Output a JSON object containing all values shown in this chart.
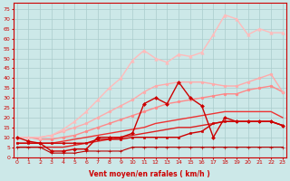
{
  "xlabel": "Vent moyen/en rafales ( km/h )",
  "background_color": "#cce8e8",
  "grid_color": "#aacccc",
  "x": [
    0,
    1,
    2,
    3,
    4,
    5,
    6,
    7,
    8,
    9,
    10,
    11,
    12,
    13,
    14,
    15,
    16,
    17,
    18,
    19,
    20,
    21,
    22,
    23
  ],
  "lines": [
    {
      "y": [
        5,
        5,
        5,
        2,
        2,
        2,
        3,
        3,
        3,
        3,
        5,
        5,
        5,
        5,
        5,
        5,
        5,
        5,
        5,
        5,
        5,
        5,
        5,
        5
      ],
      "color": "#bb0000",
      "lw": 0.8,
      "marker": "+",
      "ms": 2.5,
      "zorder": 5
    },
    {
      "y": [
        7,
        7,
        7,
        7,
        7,
        7,
        7,
        9,
        9,
        9,
        10,
        10,
        10,
        10,
        10,
        12,
        13,
        17,
        18,
        18,
        18,
        18,
        18,
        16
      ],
      "color": "#cc0000",
      "lw": 1.0,
      "marker": "s",
      "ms": 2.0,
      "zorder": 5
    },
    {
      "y": [
        10,
        8,
        7,
        3,
        3,
        4,
        4,
        10,
        10,
        10,
        12,
        27,
        30,
        27,
        38,
        30,
        26,
        10,
        20,
        18,
        18,
        18,
        18,
        16
      ],
      "color": "#cc0000",
      "lw": 1.0,
      "marker": "D",
      "ms": 2.0,
      "zorder": 6
    },
    {
      "y": [
        5,
        5,
        5,
        5,
        5,
        6,
        7,
        8,
        9,
        10,
        11,
        12,
        13,
        14,
        15,
        15,
        16,
        17,
        18,
        18,
        18,
        18,
        18,
        16
      ],
      "color": "#dd2020",
      "lw": 1.0,
      "marker": null,
      "ms": 0,
      "zorder": 3
    },
    {
      "y": [
        7,
        7,
        7,
        7,
        8,
        9,
        10,
        11,
        12,
        13,
        14,
        15,
        17,
        18,
        19,
        20,
        21,
        22,
        23,
        23,
        23,
        23,
        23,
        20
      ],
      "color": "#ee3333",
      "lw": 1.0,
      "marker": null,
      "ms": 0,
      "zorder": 3
    },
    {
      "y": [
        10,
        10,
        9,
        9,
        10,
        11,
        13,
        15,
        17,
        19,
        21,
        23,
        25,
        27,
        28,
        29,
        30,
        31,
        32,
        32,
        34,
        35,
        36,
        33
      ],
      "color": "#ff8888",
      "lw": 1.0,
      "marker": "o",
      "ms": 2.0,
      "zorder": 4
    },
    {
      "y": [
        10,
        10,
        10,
        11,
        13,
        15,
        17,
        20,
        23,
        26,
        29,
        33,
        36,
        37,
        38,
        38,
        38,
        37,
        36,
        36,
        38,
        40,
        42,
        33
      ],
      "color": "#ffaaaa",
      "lw": 1.0,
      "marker": "o",
      "ms": 2.0,
      "zorder": 4
    },
    {
      "y": [
        10,
        10,
        10,
        11,
        14,
        18,
        23,
        29,
        35,
        40,
        49,
        54,
        50,
        48,
        52,
        51,
        53,
        62,
        72,
        70,
        62,
        65,
        63,
        63
      ],
      "color": "#ffbbbb",
      "lw": 1.0,
      "marker": "^",
      "ms": 2.5,
      "zorder": 4
    }
  ],
  "ylim": [
    0,
    78
  ],
  "xlim": [
    -0.3,
    23.3
  ],
  "yticks": [
    0,
    5,
    10,
    15,
    20,
    25,
    30,
    35,
    40,
    45,
    50,
    55,
    60,
    65,
    70,
    75
  ],
  "xticks": [
    0,
    1,
    2,
    3,
    4,
    5,
    6,
    7,
    8,
    9,
    10,
    11,
    12,
    13,
    14,
    15,
    16,
    17,
    18,
    19,
    20,
    21,
    22,
    23
  ],
  "tick_fontsize": 4.5,
  "label_fontsize": 5.5,
  "label_color": "#cc0000",
  "tick_color": "#cc0000",
  "spine_color": "#cc0000"
}
